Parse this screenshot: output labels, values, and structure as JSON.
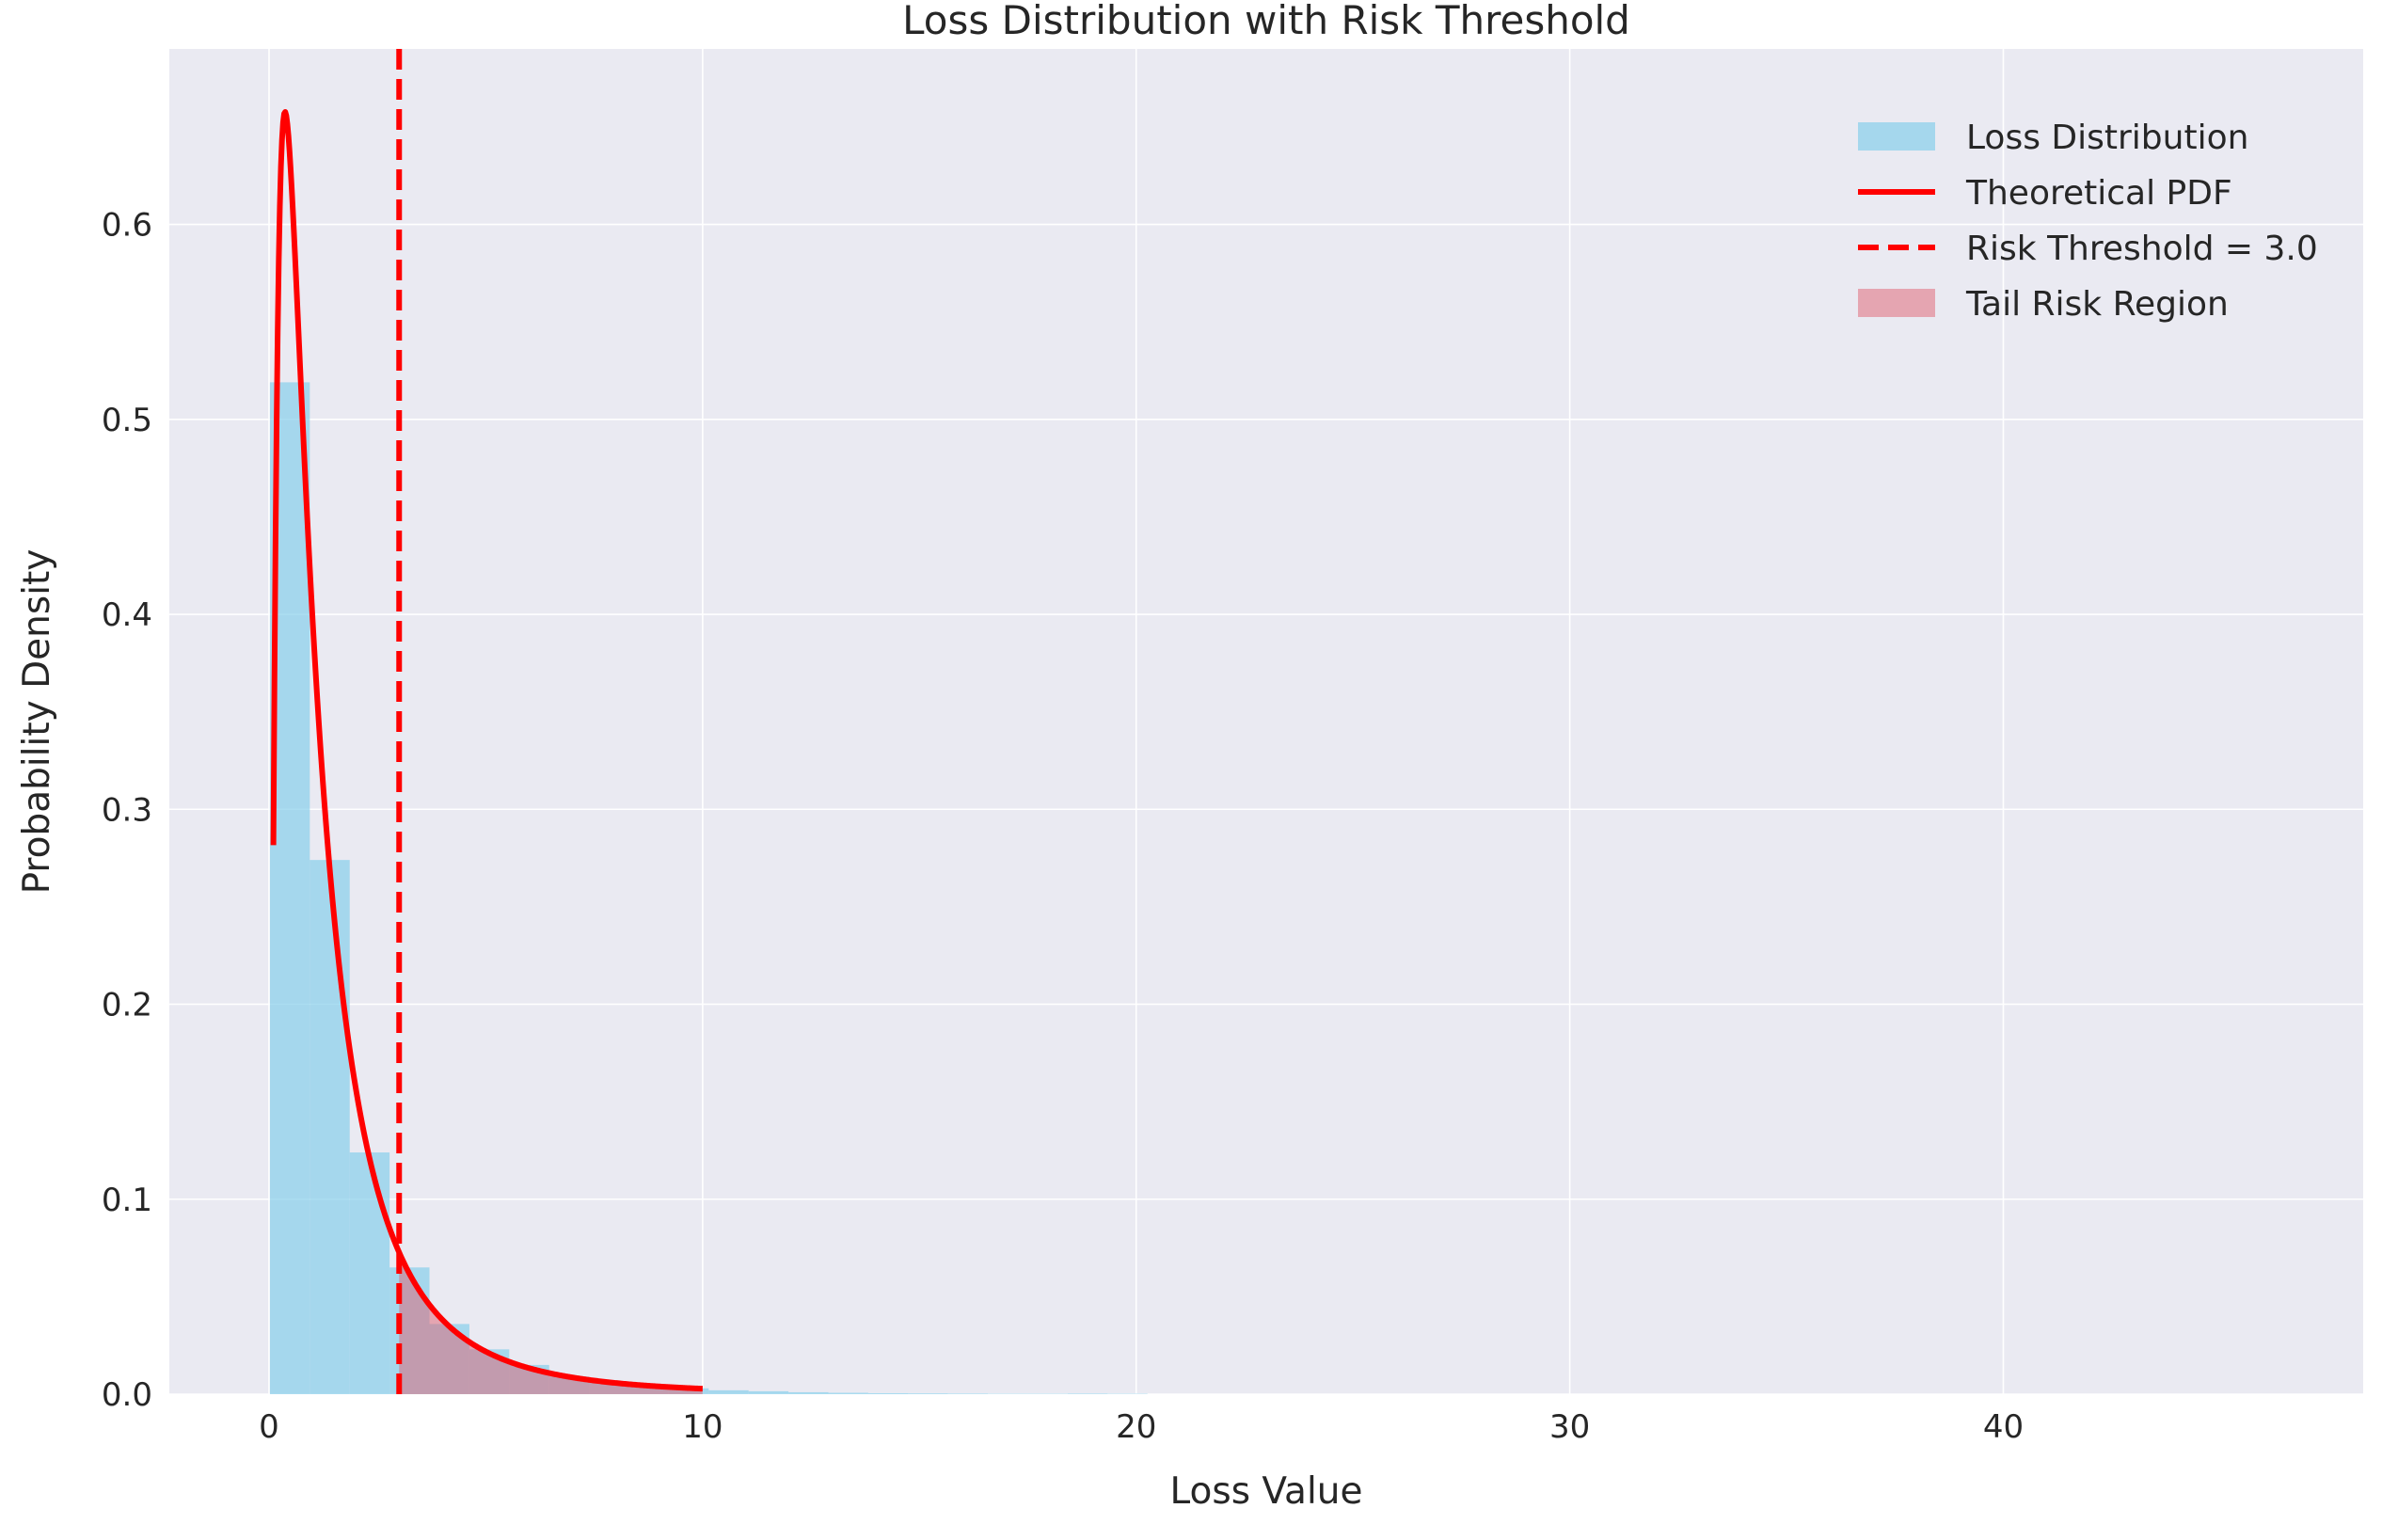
{
  "chart_data": {
    "type": "bar",
    "title": "Loss Distribution with Risk Threshold",
    "xlabel": "Loss Value",
    "ylabel": "Probability Density",
    "xlim": [
      -2.3,
      48.3
    ],
    "ylim": [
      0,
      0.69
    ],
    "xticks": [
      0,
      10,
      20,
      30,
      40
    ],
    "yticks": [
      0.0,
      0.1,
      0.2,
      0.3,
      0.4,
      0.5,
      0.6
    ],
    "grid": true,
    "legend_position": "top-right",
    "colors": {
      "background": "#eaeaf2",
      "grid": "#ffffff",
      "histogram": "#87ceeb",
      "pdf": "#ff0000",
      "threshold": "#ff0000",
      "tail": "#e06070"
    },
    "histogram": {
      "name": "Loss Distribution",
      "bin_edges": [
        0.02,
        0.94,
        1.86,
        2.78,
        3.7,
        4.62,
        5.54,
        6.46,
        7.38,
        8.3,
        9.22,
        10.14,
        11.06,
        11.98,
        12.9,
        13.82,
        14.74,
        15.66,
        16.58,
        17.5,
        18.42,
        19.34,
        20.26
      ],
      "values": [
        0.519,
        0.274,
        0.124,
        0.065,
        0.036,
        0.023,
        0.015,
        0.009,
        0.006,
        0.004,
        0.003,
        0.002,
        0.0015,
        0.001,
        0.0007,
        0.0005,
        0.0004,
        0.0003,
        0.0002,
        0.0002,
        0.0003,
        0.0002
      ]
    },
    "pdf": {
      "name": "Theoretical PDF",
      "distribution": "lognormal",
      "mu": 0,
      "sigma": 1,
      "x_range": [
        0.1,
        10
      ],
      "points": 400
    },
    "threshold": {
      "name": "Risk Threshold = 3.0",
      "value": 3.0
    },
    "tail_region": {
      "name": "Tail Risk Region",
      "x_range": [
        3.0,
        10
      ]
    },
    "legend": [
      "Loss Distribution",
      "Theoretical PDF",
      "Risk Threshold = 3.0",
      "Tail Risk Region"
    ]
  }
}
